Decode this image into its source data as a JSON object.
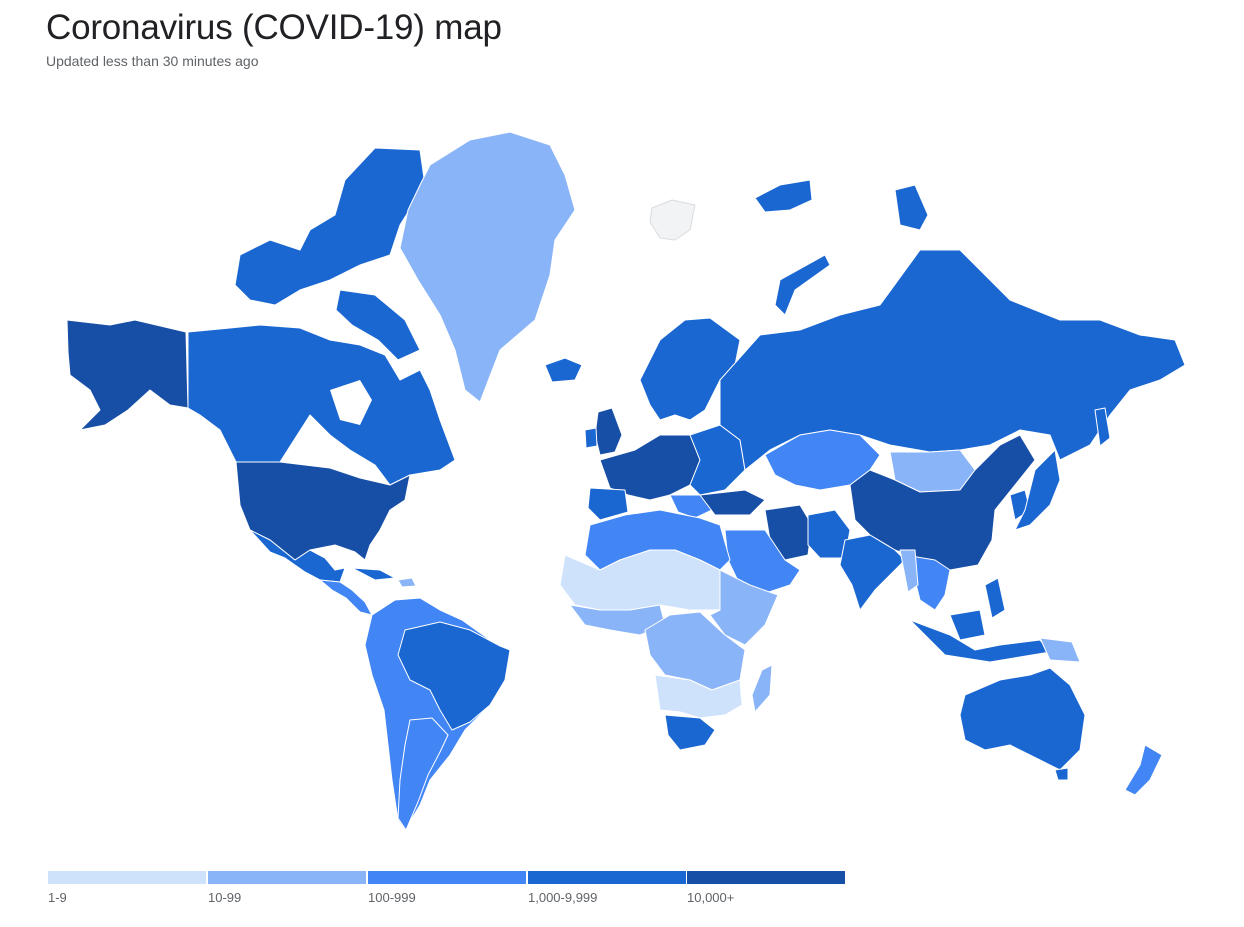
{
  "header": {
    "title": "Coronavirus (COVID-19) map",
    "subtitle": "Updated less than 30 minutes ago"
  },
  "legend": {
    "items": [
      {
        "label": "1-9",
        "color": "#cfe2fc"
      },
      {
        "label": "10-99",
        "color": "#8ab4f8"
      },
      {
        "label": "100-999",
        "color": "#4285f4"
      },
      {
        "label": "1,000-9,999",
        "color": "#1a67d2"
      },
      {
        "label": "10,000+",
        "color": "#174ea6"
      }
    ]
  },
  "map": {
    "no_data_color": "#f1f3f4",
    "border_color": "#ffffff"
  }
}
